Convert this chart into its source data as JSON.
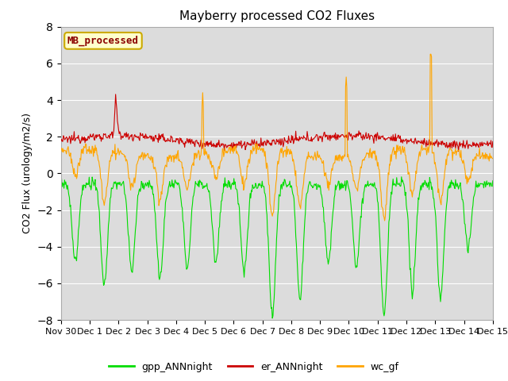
{
  "title": "Mayberry processed CO2 Fluxes",
  "ylabel": "CO2 Flux (urology/m2/s)",
  "ylim": [
    -8,
    8
  ],
  "yticks": [
    -8,
    -6,
    -4,
    -2,
    0,
    2,
    4,
    6,
    8
  ],
  "bg_color": "#dcdcdc",
  "fig_color": "#ffffff",
  "grid_color": "#ffffff",
  "legend_label": "MB_processed",
  "legend_label_color": "#8B0000",
  "legend_box_facecolor": "#ffffcc",
  "legend_box_edgecolor": "#ccaa00",
  "series": {
    "gpp_ANNnight": {
      "color": "#00dd00",
      "linewidth": 0.8
    },
    "er_ANNnight": {
      "color": "#cc0000",
      "linewidth": 0.8
    },
    "wc_gf": {
      "color": "#ffa500",
      "linewidth": 0.8
    }
  },
  "xtick_labels": [
    "Nov 30",
    "Dec 1",
    "Dec 2",
    "Dec 3",
    "Dec 4",
    "Dec 5",
    "Dec 6",
    "Dec 7",
    "Dec 8",
    "Dec 9",
    "Dec 10",
    "Dec 11",
    "Dec 12",
    "Dec 13",
    "Dec 14",
    "Dec 15"
  ],
  "n_points": 720,
  "title_fontsize": 11,
  "axis_fontsize": 9,
  "tick_fontsize": 8
}
